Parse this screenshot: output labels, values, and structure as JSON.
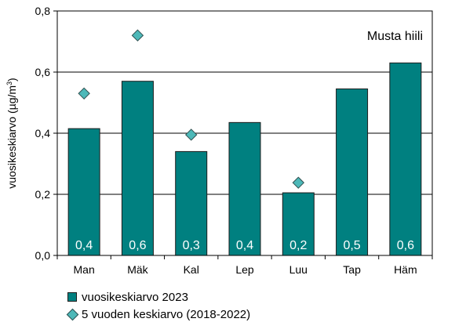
{
  "chart_data": {
    "type": "bar",
    "categories": [
      "Man",
      "Mäk",
      "Kal",
      "Lep",
      "Luu",
      "Tap",
      "Häm"
    ],
    "series": [
      {
        "name": "vuosikeskiarvo 2023",
        "kind": "bar",
        "color": "#008080",
        "values": [
          0.415,
          0.57,
          0.34,
          0.435,
          0.205,
          0.545,
          0.63
        ],
        "labels": [
          "0,4",
          "0,6",
          "0,3",
          "0,4",
          "0,2",
          "0,5",
          "0,6"
        ]
      },
      {
        "name": "5 vuoden keskiarvo (2018-2022)",
        "kind": "marker",
        "marker": "diamond",
        "color": "#4db8b8",
        "values": [
          0.53,
          0.72,
          0.395,
          null,
          0.238,
          null,
          null
        ]
      }
    ],
    "ylabel_main": "vuosikeskiarvo (µg/m",
    "ylabel_sup": "3",
    "ylabel_close": ")",
    "annotation": "Musta hiili",
    "ylim": [
      0,
      0.8
    ],
    "yticks": [
      0,
      0.2,
      0.4,
      0.6,
      0.8
    ],
    "ytick_labels": [
      "0,0",
      "0,2",
      "0,4",
      "0,6",
      "0,8"
    ],
    "grid": true,
    "legend_position": "bottom"
  }
}
